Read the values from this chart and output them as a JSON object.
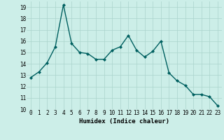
{
  "x": [
    0,
    1,
    2,
    3,
    4,
    5,
    6,
    7,
    8,
    9,
    10,
    11,
    12,
    13,
    14,
    15,
    16,
    17,
    18,
    19,
    20,
    21,
    22,
    23
  ],
  "y": [
    12.8,
    13.3,
    14.1,
    15.5,
    19.2,
    15.8,
    15.0,
    14.9,
    14.4,
    14.4,
    15.2,
    15.5,
    16.5,
    15.2,
    14.6,
    15.1,
    16.0,
    13.2,
    12.5,
    12.1,
    11.3,
    11.3,
    11.1,
    10.3
  ],
  "line_color": "#006060",
  "marker": "D",
  "marker_size": 2,
  "line_width": 1.0,
  "bg_color": "#cceee8",
  "grid_color": "#aad4cc",
  "xlabel": "Humidex (Indice chaleur)",
  "xlim": [
    -0.5,
    23.5
  ],
  "ylim": [
    10,
    19.5
  ],
  "yticks": [
    10,
    11,
    12,
    13,
    14,
    15,
    16,
    17,
    18,
    19
  ],
  "xticks": [
    0,
    1,
    2,
    3,
    4,
    5,
    6,
    7,
    8,
    9,
    10,
    11,
    12,
    13,
    14,
    15,
    16,
    17,
    18,
    19,
    20,
    21,
    22,
    23
  ],
  "tick_fontsize": 5.5,
  "xlabel_fontsize": 6.5
}
